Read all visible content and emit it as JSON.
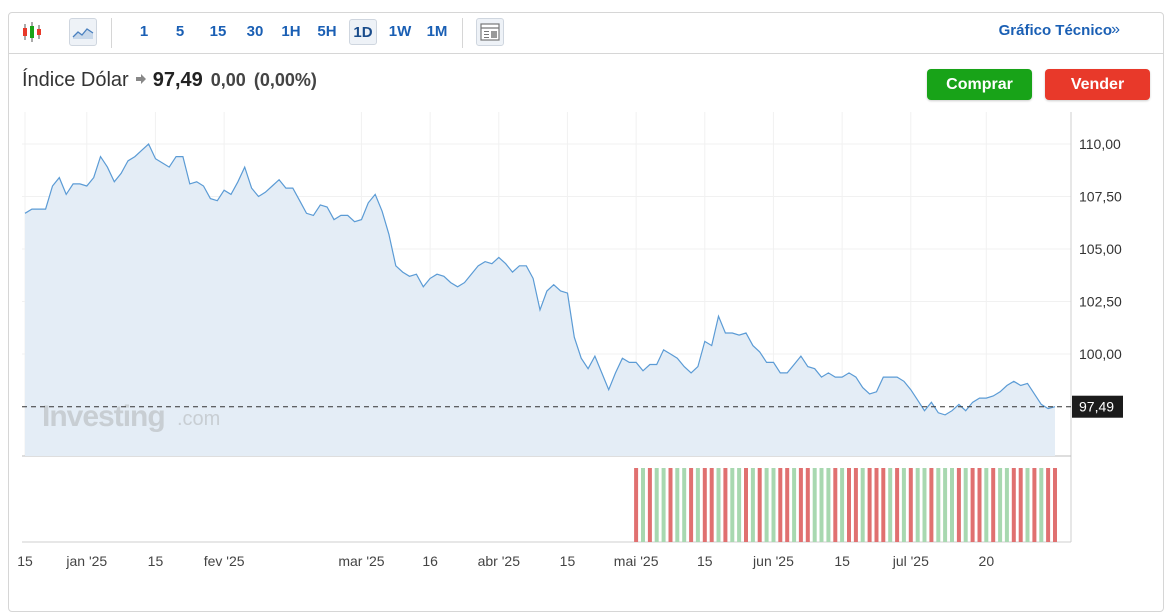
{
  "toolbar": {
    "icons": [
      "candlestick-icon",
      "area-chart-icon",
      "news-layout-icon"
    ],
    "timeframes": [
      "1",
      "5",
      "15",
      "30",
      "1H",
      "5H",
      "1D",
      "1W",
      "1M"
    ],
    "active_timeframe": "1D",
    "technical_link": "Gráfico Técnico",
    "technical_chevron": "»"
  },
  "header": {
    "instrument": "Índice Dólar",
    "price": "97,49",
    "change": "0,00",
    "change_pct": "(0,00%)",
    "buy_label": "Comprar",
    "sell_label": "Vender"
  },
  "watermark": {
    "brand": "Investing",
    "suffix": ".com"
  },
  "colors": {
    "line": "#5b9bd5",
    "area": "#e4edf6",
    "buy": "#18a318",
    "sell": "#e8392a",
    "vol_up": "#a8d8b0",
    "vol_down": "#e07070",
    "link": "#1a5fb4"
  },
  "chart_data": {
    "type": "area",
    "ylim": [
      95.0,
      111.5
    ],
    "y_ticks": [
      "110,00",
      "107,50",
      "105,00",
      "102,50",
      "100,00"
    ],
    "y_tick_values": [
      110.0,
      107.5,
      105.0,
      102.5,
      100.0
    ],
    "last_value_label": "97,49",
    "last_value": 97.49,
    "x_tick_labels": [
      "15",
      "jan '25",
      "15",
      "fev '25",
      "mar '25",
      "16",
      "abr '25",
      "15",
      "mai '25",
      "15",
      "jun '25",
      "15",
      "jul '25",
      "20"
    ],
    "x_tick_index": [
      0,
      9,
      19,
      29,
      49,
      59,
      69,
      79,
      89,
      99,
      109,
      119,
      129,
      140
    ],
    "values": [
      106.7,
      106.9,
      106.9,
      106.9,
      108.0,
      108.4,
      107.6,
      108.1,
      108.1,
      108.0,
      108.4,
      109.4,
      108.9,
      108.2,
      108.6,
      109.2,
      109.4,
      109.7,
      110.0,
      109.3,
      109.1,
      108.9,
      109.4,
      109.4,
      108.1,
      108.2,
      108.0,
      107.4,
      107.3,
      107.8,
      107.6,
      108.2,
      108.9,
      107.9,
      107.5,
      107.7,
      108.0,
      108.3,
      107.9,
      107.9,
      107.3,
      106.7,
      106.6,
      107.1,
      107.0,
      106.4,
      106.6,
      106.6,
      106.3,
      106.4,
      107.2,
      107.6,
      106.8,
      105.7,
      104.2,
      103.9,
      103.7,
      103.8,
      103.2,
      103.6,
      103.8,
      103.7,
      103.4,
      103.2,
      103.4,
      103.8,
      104.2,
      104.4,
      104.3,
      104.6,
      104.3,
      103.9,
      104.2,
      104.2,
      103.6,
      102.1,
      103.0,
      103.3,
      103.0,
      102.9,
      100.8,
      99.8,
      99.3,
      99.9,
      99.1,
      98.3,
      99.1,
      99.8,
      99.6,
      99.6,
      99.2,
      99.5,
      99.5,
      100.2,
      100.0,
      99.8,
      99.4,
      99.1,
      99.4,
      100.6,
      100.4,
      101.8,
      101.0,
      101.0,
      100.9,
      101.0,
      100.4,
      100.1,
      99.6,
      99.6,
      99.1,
      99.1,
      99.5,
      99.9,
      99.4,
      99.3,
      98.9,
      99.1,
      98.9,
      98.9,
      99.1,
      98.9,
      98.4,
      98.1,
      98.2,
      98.9,
      98.9,
      98.9,
      98.7,
      98.3,
      97.8,
      97.3,
      97.7,
      97.2,
      97.1,
      97.3,
      97.6,
      97.3,
      97.7,
      97.9,
      97.9,
      98.0,
      98.2,
      98.5,
      98.7,
      98.5,
      98.6,
      98.1,
      97.6,
      97.4,
      97.49
    ],
    "volume_start_index": 89,
    "volume_pattern": [
      "down",
      "up",
      "down",
      "up",
      "up",
      "down",
      "up",
      "up",
      "down",
      "up",
      "down",
      "down",
      "up",
      "down",
      "up",
      "up",
      "down",
      "up",
      "down",
      "up",
      "up",
      "down",
      "down",
      "up",
      "down",
      "down",
      "up",
      "up",
      "up",
      "down",
      "up",
      "down",
      "down",
      "up",
      "down",
      "down",
      "down",
      "up",
      "down",
      "up",
      "down",
      "up",
      "up",
      "down",
      "up",
      "up",
      "up",
      "down",
      "up",
      "down",
      "down",
      "up",
      "down",
      "up",
      "up",
      "down",
      "down",
      "up",
      "down",
      "up",
      "down",
      "down",
      "up",
      "down",
      "down",
      "up"
    ]
  }
}
